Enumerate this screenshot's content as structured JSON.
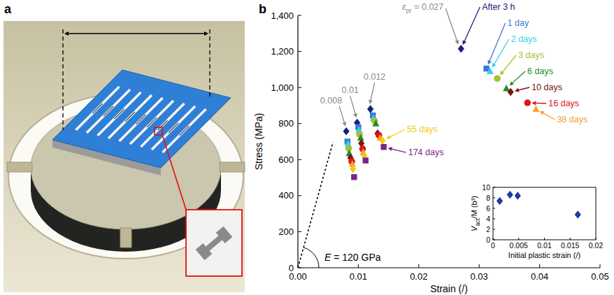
{
  "panel_labels": [
    "a",
    "b"
  ],
  "chart_data": [
    {
      "type": "scatter",
      "x_label": "Strain (/)",
      "y_label": "Stress (MPa)",
      "xlim": [
        0,
        0.05
      ],
      "xticks": [
        {
          "value": 0,
          "label": "0.00"
        },
        0.01,
        0.02,
        0.03,
        0.04,
        0.05
      ],
      "ylim": [
        0,
        1400
      ],
      "yticks": [
        0,
        200,
        400,
        600,
        800,
        {
          "value": 1000,
          "label": "1,000"
        },
        {
          "value": 1200,
          "label": "1,200"
        },
        {
          "value": 1400,
          "label": "1,400"
        }
      ],
      "grid": false,
      "series": [
        {
          "name": "After 3 h",
          "color": "#17207a",
          "marker": "diamond",
          "x": [
            0.008,
            0.0098,
            0.012,
            0.027
          ],
          "values": [
            757,
            805,
            880,
            1215
          ]
        },
        {
          "name": "1 day",
          "color": "#3b78d8",
          "marker": "square",
          "x": [
            0.0082,
            0.01,
            0.0124,
            0.0312
          ],
          "values": [
            700,
            780,
            845,
            1105
          ]
        },
        {
          "name": "2 days",
          "color": "#2fd3e6",
          "marker": "triangle",
          "x": [
            0.0083,
            0.0101,
            0.0125,
            0.0318
          ],
          "values": [
            688,
            765,
            830,
            1090
          ]
        },
        {
          "name": "3 days",
          "color": "#a3bf36",
          "marker": "circle",
          "x": [
            0.0084,
            0.0102,
            0.0127,
            0.033
          ],
          "values": [
            662,
            740,
            815,
            1050
          ]
        },
        {
          "name": "6 days",
          "color": "#1e8c2a",
          "marker": "triangle",
          "x": [
            0.0085,
            0.0104,
            0.0129,
            0.0345
          ],
          "values": [
            635,
            720,
            800,
            995
          ]
        },
        {
          "name": "10 days",
          "color": "#7a1414",
          "marker": "diamond",
          "x": [
            0.0087,
            0.0105,
            0.0132,
            0.0352
          ],
          "values": [
            610,
            690,
            745,
            975
          ]
        },
        {
          "name": "16 days",
          "color": "#e0161b",
          "marker": "circle",
          "x": [
            0.0089,
            0.0107,
            0.0134,
            0.038
          ],
          "values": [
            590,
            660,
            735,
            915
          ]
        },
        {
          "name": "38 days",
          "color": "#f3a52a",
          "marker": "triangle",
          "x": [
            0.009,
            0.0108,
            0.0136,
            0.0394
          ],
          "values": [
            575,
            640,
            720,
            880
          ]
        },
        {
          "name": "55 days",
          "color": "#f0cc10",
          "marker": "diamond",
          "x": [
            0.0091,
            0.011,
            0.014,
            null
          ],
          "values": [
            548,
            620,
            705,
            null
          ]
        },
        {
          "name": "174 days",
          "color": "#7b2486",
          "marker": "square",
          "x": [
            0.0093,
            0.0112,
            0.0142,
            null
          ],
          "values": [
            503,
            595,
            670,
            null
          ]
        }
      ],
      "group_labels": [
        "0.008",
        "0.01",
        "0.012",
        {
          "text": "ε",
          "sub": "pr",
          "rest": " = 0.027"
        }
      ],
      "modulus_line": {
        "label": {
          "text": "E",
          "rest": " = 120 GPa"
        },
        "modulus": 120000,
        "x_end": 0.0058
      }
    },
    {
      "type": "scatter",
      "x_label": "Initial plastic strain (/)",
      "y_label": {
        "text": "V",
        "sub": "act",
        "rest": "/M (b³)"
      },
      "xlim": [
        0,
        0.02
      ],
      "xticks": [
        0,
        0.005,
        0.01,
        0.015,
        0.02
      ],
      "ylim": [
        0,
        10
      ],
      "yticks": [
        0,
        2,
        4,
        6,
        8,
        10
      ],
      "grid": false,
      "color": "#1f3b9e",
      "marker": "diamond",
      "x": [
        0.0013,
        0.0033,
        0.0048,
        0.0165
      ],
      "values": [
        7.4,
        8.6,
        8.4,
        4.8
      ]
    }
  ]
}
